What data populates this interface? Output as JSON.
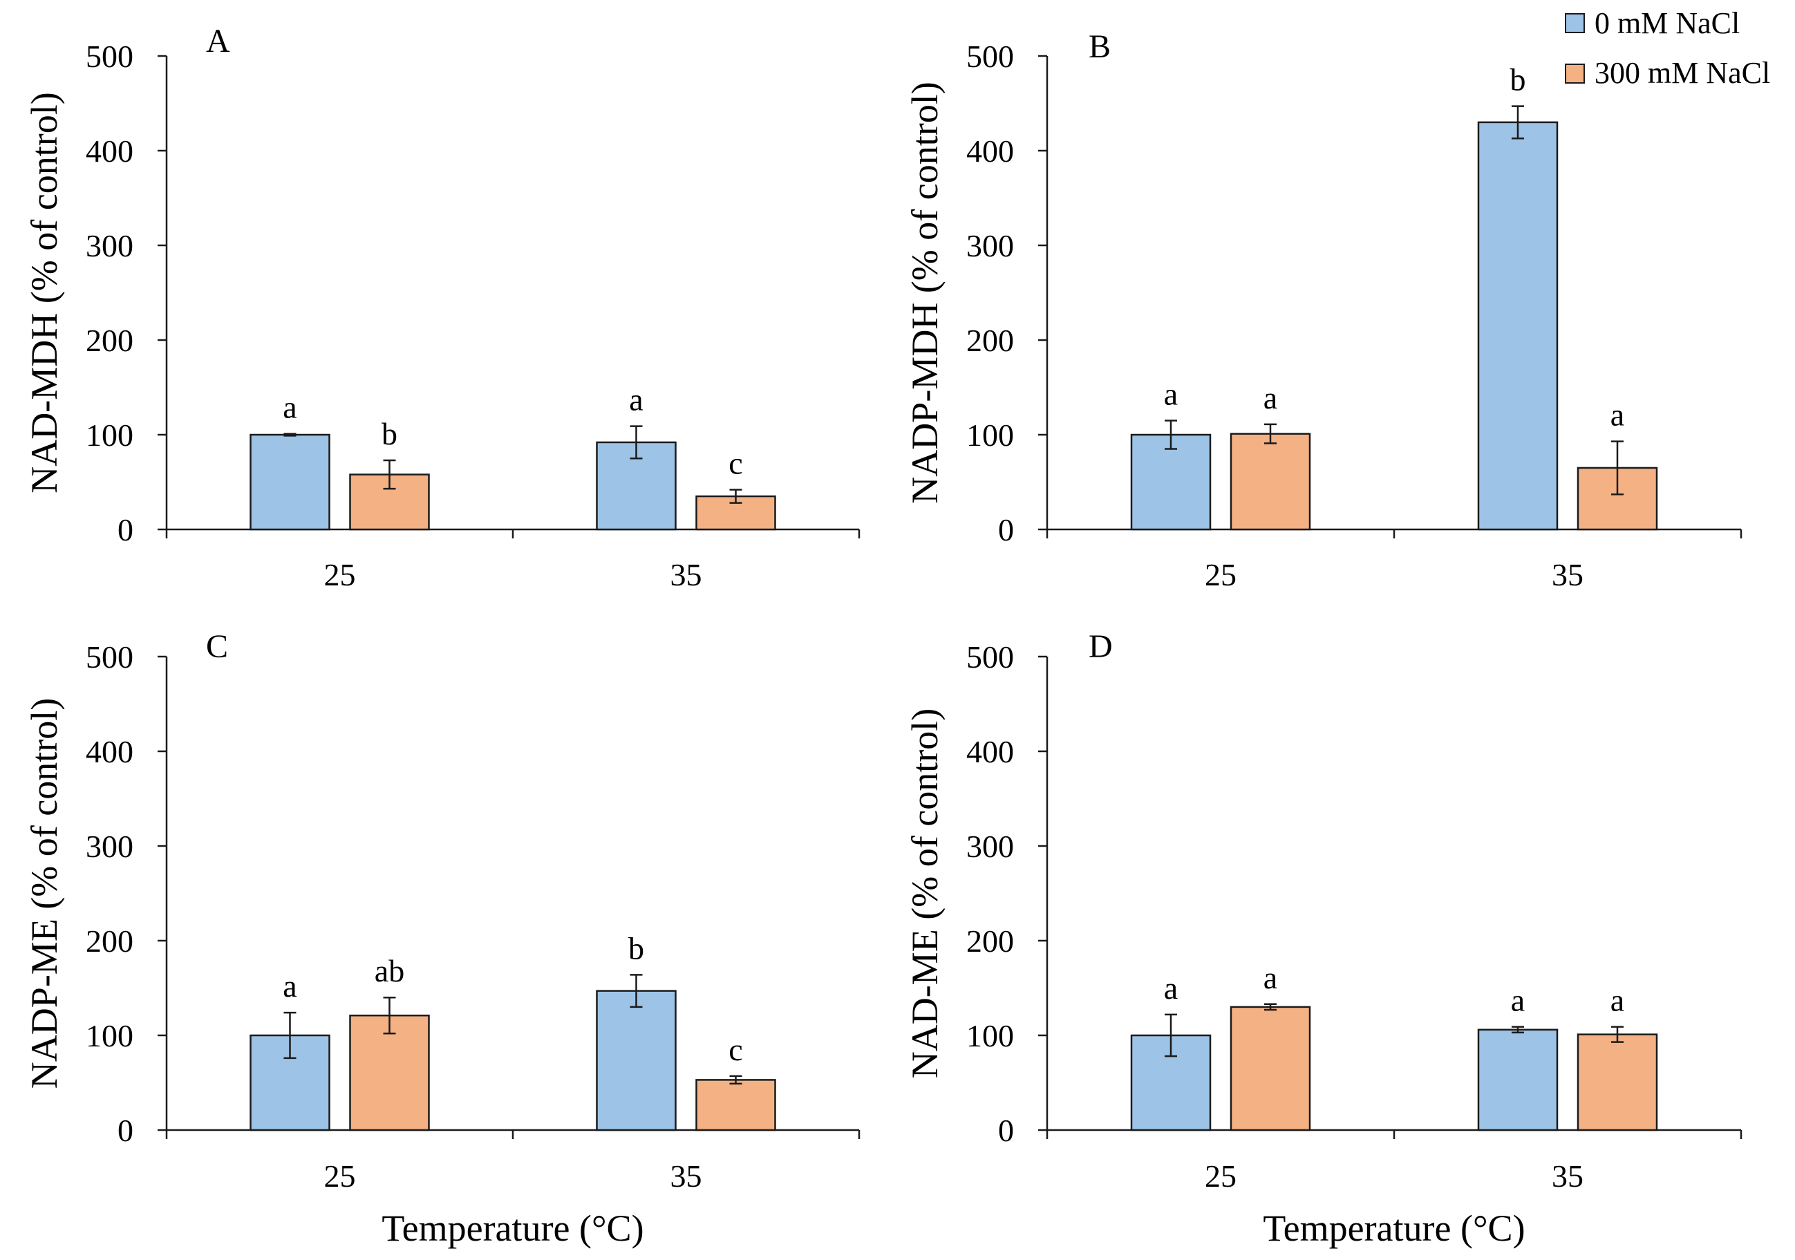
{
  "chart_data": {
    "type": "bar",
    "legend": {
      "position": "top-right",
      "entries": [
        {
          "label": "0 mM NaCl",
          "color": "#9DC3E6"
        },
        {
          "label": "300 mM NaCl",
          "color": "#F4B183"
        }
      ]
    },
    "panels": [
      {
        "type": "bar",
        "panel": "A",
        "ylabel": "NAD-MDH (% of control)",
        "categories": [
          "25",
          "35"
        ],
        "ylim": [
          0,
          500
        ],
        "yticks": [
          0,
          100,
          200,
          300,
          400,
          500
        ],
        "series": [
          {
            "name": "0 mM NaCl",
            "values": [
              100,
              92
            ],
            "errors": [
              1,
              17
            ],
            "letters": [
              "a",
              "a"
            ]
          },
          {
            "name": "300 mM NaCl",
            "values": [
              58,
              35
            ],
            "errors": [
              15,
              7
            ],
            "letters": [
              "b",
              "c"
            ]
          }
        ]
      },
      {
        "type": "bar",
        "panel": "B",
        "ylabel": "NADP-MDH (% of control)",
        "categories": [
          "25",
          "35"
        ],
        "ylim": [
          0,
          500
        ],
        "yticks": [
          0,
          100,
          200,
          300,
          400,
          500
        ],
        "series": [
          {
            "name": "0 mM NaCl",
            "values": [
              100,
              430
            ],
            "errors": [
              15,
              17
            ],
            "letters": [
              "a",
              "b"
            ]
          },
          {
            "name": "300 mM NaCl",
            "values": [
              101,
              65
            ],
            "errors": [
              10,
              28
            ],
            "letters": [
              "a",
              "a"
            ]
          }
        ]
      },
      {
        "type": "bar",
        "panel": "C",
        "ylabel": "NADP-ME (% of control)",
        "xlabel": "Temperature (°C)",
        "categories": [
          "25",
          "35"
        ],
        "ylim": [
          0,
          500
        ],
        "yticks": [
          0,
          100,
          200,
          300,
          400,
          500
        ],
        "series": [
          {
            "name": "0 mM NaCl",
            "values": [
              100,
              147
            ],
            "errors": [
              24,
              17
            ],
            "letters": [
              "a",
              "b"
            ]
          },
          {
            "name": "300 mM NaCl",
            "values": [
              121,
              53
            ],
            "errors": [
              19,
              4
            ],
            "letters": [
              "ab",
              "c"
            ]
          }
        ]
      },
      {
        "type": "bar",
        "panel": "D",
        "ylabel": "NAD-ME (% of control)",
        "xlabel": "Temperature (°C)",
        "categories": [
          "25",
          "35"
        ],
        "ylim": [
          0,
          500
        ],
        "yticks": [
          0,
          100,
          200,
          300,
          400,
          500
        ],
        "series": [
          {
            "name": "0 mM NaCl",
            "values": [
              100,
              106
            ],
            "errors": [
              22,
              3
            ],
            "letters": [
              "a",
              "a"
            ]
          },
          {
            "name": "300 mM NaCl",
            "values": [
              130,
              101
            ],
            "errors": [
              3,
              8
            ],
            "letters": [
              "a",
              "a"
            ]
          }
        ]
      }
    ]
  }
}
